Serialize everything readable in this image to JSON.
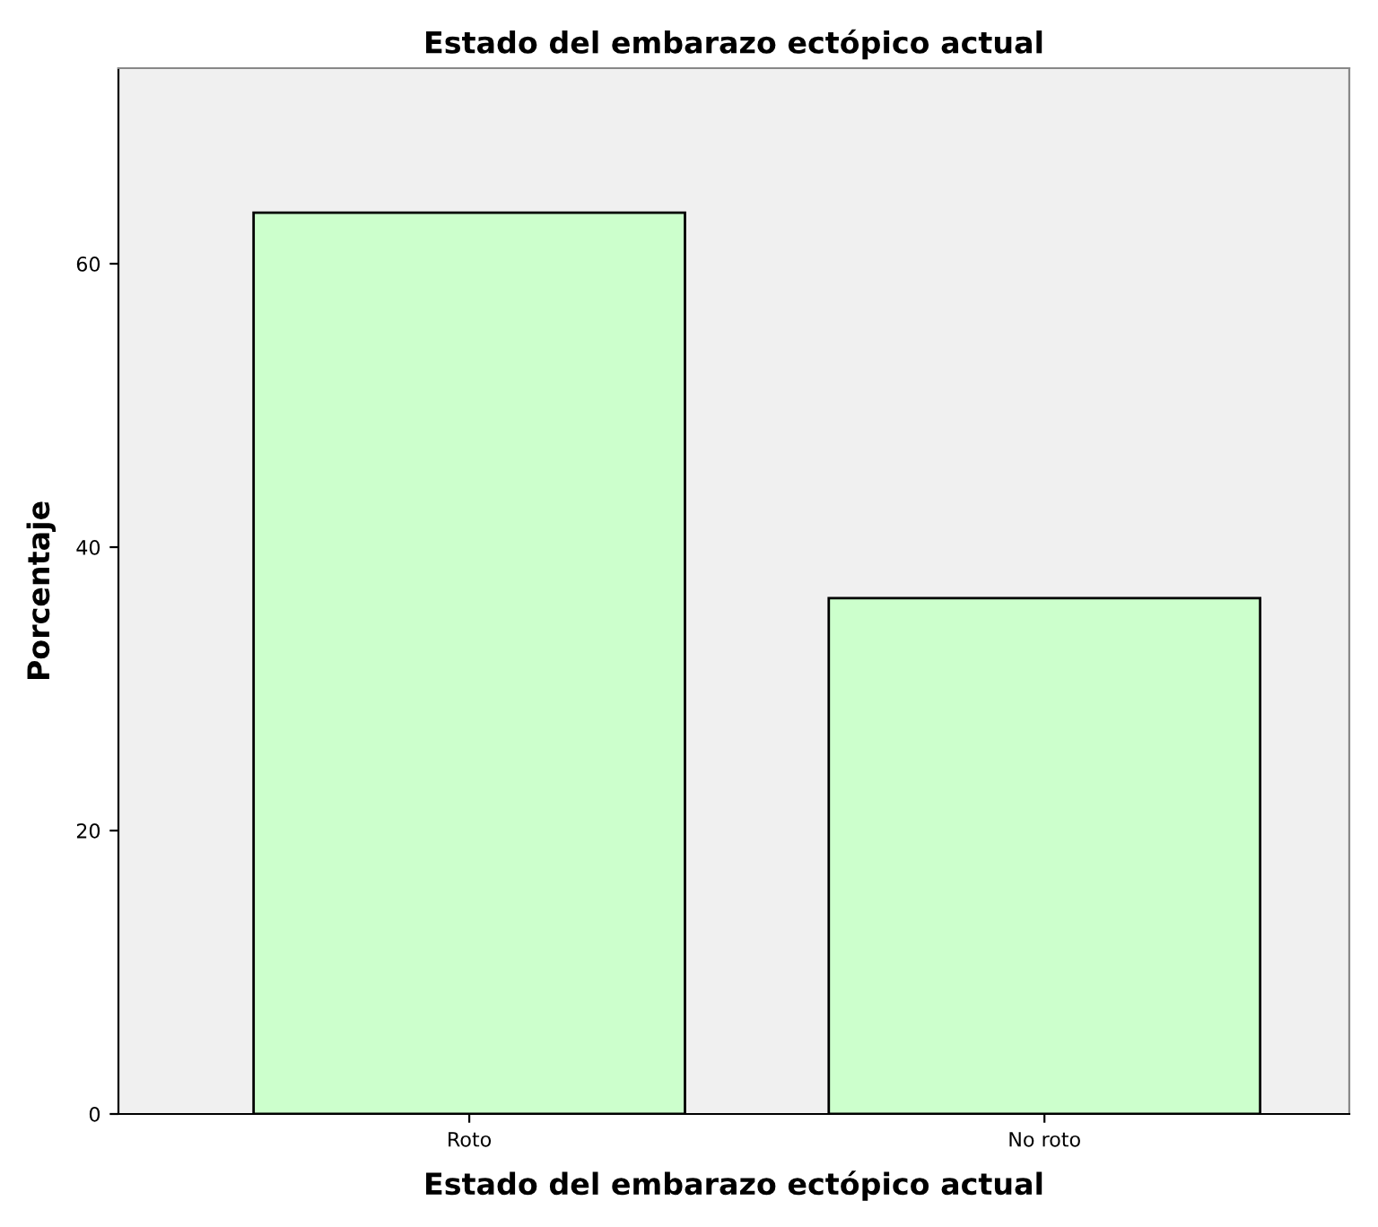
{
  "chart_data": {
    "type": "bar",
    "title": "Estado del embarazo ectópico actual",
    "xlabel": "Estado del embarazo ectópico actual",
    "ylabel": "Porcentaje",
    "categories": [
      "Roto",
      "No roto"
    ],
    "values": [
      63.6,
      36.4
    ],
    "color": "#ccffcc",
    "ylim": [
      0,
      73.8
    ],
    "yticks": [
      0,
      20,
      40,
      60
    ],
    "grid": false,
    "legend": false
  }
}
